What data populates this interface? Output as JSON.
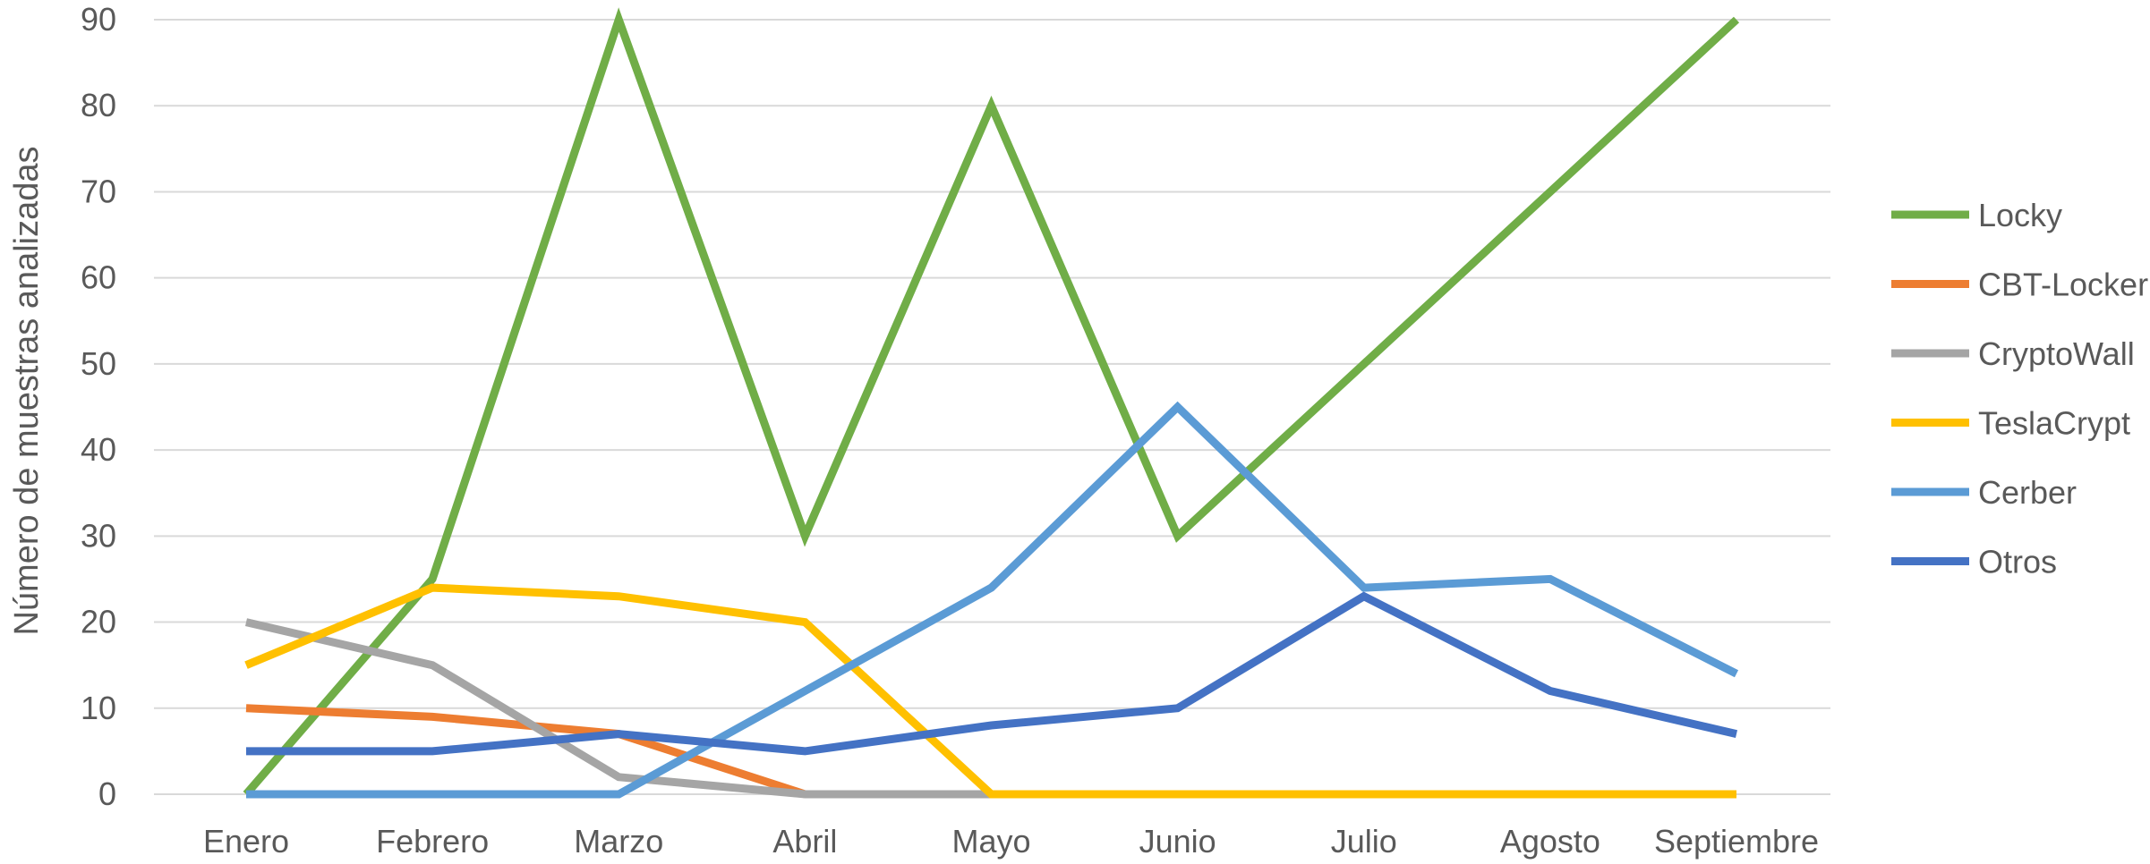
{
  "chart_data": {
    "type": "line",
    "title": "",
    "xlabel": "",
    "ylabel": "Número de muestras analizadas",
    "categories": [
      "Enero",
      "Febrero",
      "Marzo",
      "Abril",
      "Mayo",
      "Junio",
      "Julio",
      "Agosto",
      "Septiembre"
    ],
    "ylim": [
      0,
      90
    ],
    "yticks": [
      0,
      10,
      20,
      30,
      40,
      50,
      60,
      70,
      80,
      90
    ],
    "grid": true,
    "legend_position": "right",
    "series": [
      {
        "name": "Locky",
        "color": "#70AD47",
        "values": [
          0,
          25,
          90,
          30,
          80,
          30,
          50,
          70,
          90
        ]
      },
      {
        "name": "CBT-Locker",
        "color": "#ED7D31",
        "values": [
          10,
          9,
          7,
          0,
          null,
          null,
          null,
          null,
          null
        ]
      },
      {
        "name": "CryptoWall",
        "color": "#A5A5A5",
        "values": [
          20,
          15,
          2,
          0,
          0,
          null,
          null,
          null,
          null
        ]
      },
      {
        "name": "TeslaCrypt",
        "color": "#FFC000",
        "values": [
          15,
          24,
          23,
          20,
          0,
          0,
          0,
          0,
          0
        ]
      },
      {
        "name": "Cerber",
        "color": "#5B9BD5",
        "values": [
          0,
          0,
          0,
          12,
          24,
          45,
          24,
          25,
          14
        ]
      },
      {
        "name": "Otros",
        "color": "#4472C4",
        "values": [
          5,
          5,
          7,
          5,
          8,
          10,
          23,
          12,
          7
        ]
      }
    ]
  }
}
